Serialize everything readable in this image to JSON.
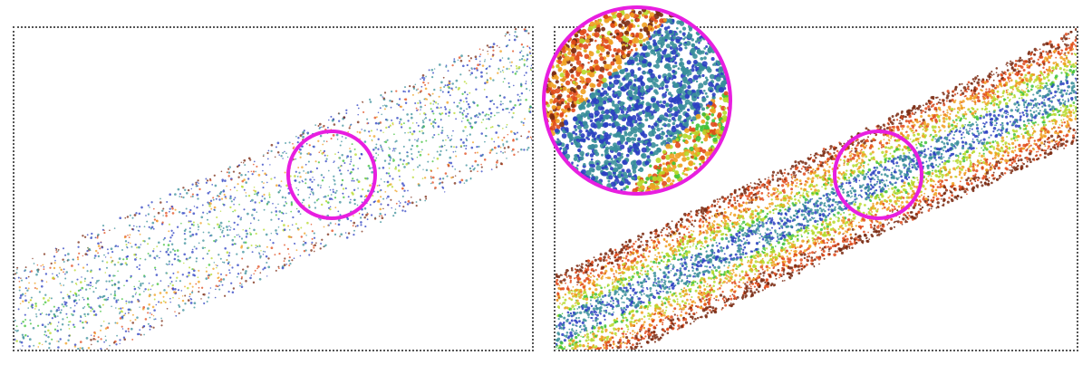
{
  "figure": {
    "left_panel": {
      "view": "sparse-lidar-scan"
    },
    "right_panel": {
      "view": "dense-completed-scan"
    },
    "highlight_color": "#e81ee0",
    "frame_style": "dotted-gray",
    "color_scale": [
      "#2b3fc2",
      "#3a8f9a",
      "#3fc23a",
      "#b6d92a",
      "#f0a020",
      "#e04a1a",
      "#7a2a12"
    ]
  }
}
